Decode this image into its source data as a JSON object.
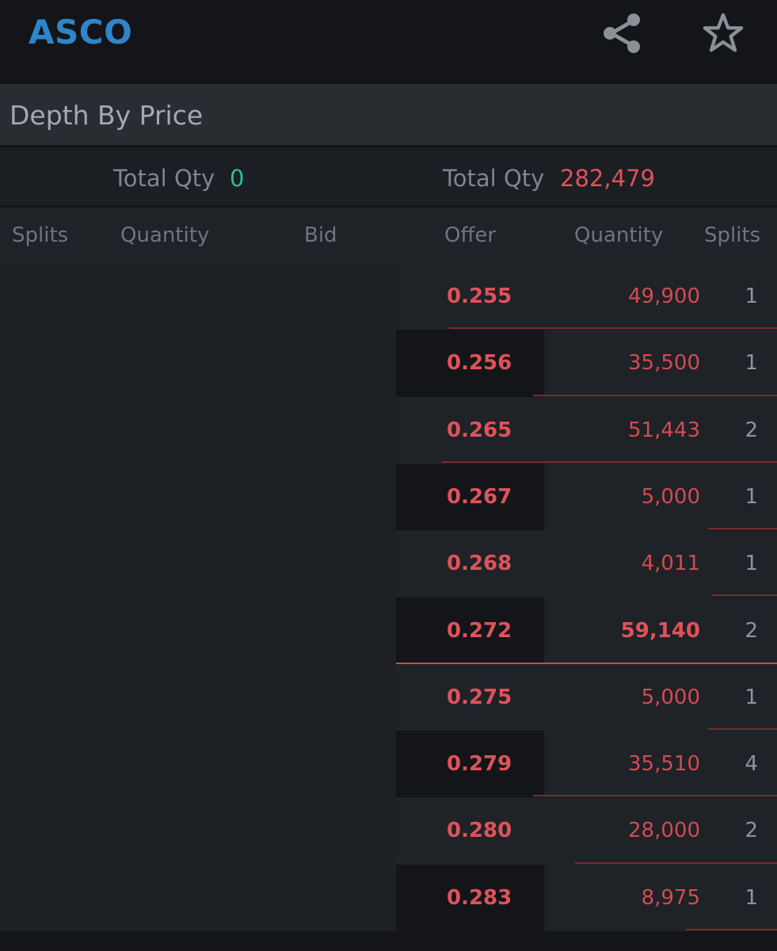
{
  "header": {
    "symbol": "ASCO",
    "share_icon": "share-icon",
    "favorite_icon": "star-outline-icon"
  },
  "section": {
    "title": "Depth By Price"
  },
  "totals": {
    "bid_label": "Total Qty",
    "bid_value": "0",
    "offer_label": "Total Qty",
    "offer_value": "282,479"
  },
  "columns": {
    "bid_splits": "Splits",
    "bid_quantity": "Quantity",
    "bid": "Bid",
    "offer": "Offer",
    "offer_quantity": "Quantity",
    "offer_splits": "Splits"
  },
  "offers": [
    {
      "price": "0.255",
      "quantity": "49,900",
      "splits": "1",
      "depth_fraction": 0.86,
      "highlight": false
    },
    {
      "price": "0.256",
      "quantity": "35,500",
      "splits": "1",
      "depth_fraction": 0.64,
      "highlight": false
    },
    {
      "price": "0.265",
      "quantity": "51,443",
      "splits": "2",
      "depth_fraction": 0.88,
      "highlight": false
    },
    {
      "price": "0.267",
      "quantity": "5,000",
      "splits": "1",
      "depth_fraction": 0.18,
      "highlight": false
    },
    {
      "price": "0.268",
      "quantity": "4,011",
      "splits": "1",
      "depth_fraction": 0.17,
      "highlight": false
    },
    {
      "price": "0.272",
      "quantity": "59,140",
      "splits": "2",
      "depth_fraction": 1.0,
      "highlight": true
    },
    {
      "price": "0.275",
      "quantity": "5,000",
      "splits": "1",
      "depth_fraction": 0.18,
      "highlight": false
    },
    {
      "price": "0.279",
      "quantity": "35,510",
      "splits": "4",
      "depth_fraction": 0.64,
      "highlight": false
    },
    {
      "price": "0.280",
      "quantity": "28,000",
      "splits": "2",
      "depth_fraction": 0.53,
      "highlight": false
    },
    {
      "price": "0.283",
      "quantity": "8,975",
      "splits": "1",
      "depth_fraction": 0.24,
      "highlight": false
    }
  ],
  "colors": {
    "symbol": "#2e86c8",
    "bid_total": "#2bbf96",
    "offer_total": "#e0525a",
    "offer_text": "#e0525a",
    "depth_bar": "#7b2a2f",
    "spread_line": "#d2474f",
    "row_light": "#1f2226",
    "row_dark": "#131519"
  }
}
